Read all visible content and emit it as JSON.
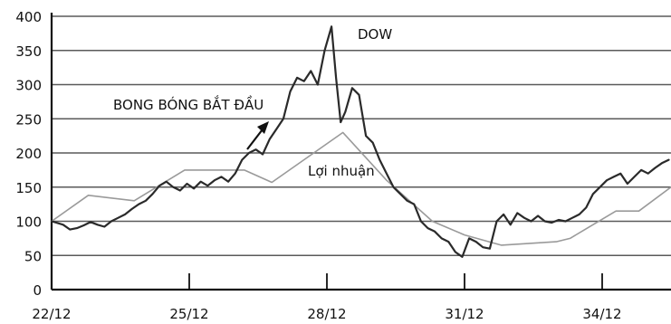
{
  "chart_data": {
    "type": "line",
    "title": "",
    "xlabel": "",
    "ylabel": "",
    "ylim": [
      0,
      400
    ],
    "xlim": [
      22,
      35.5
    ],
    "grid": true,
    "x_ticks": [
      22,
      25,
      28,
      31,
      34
    ],
    "x_tick_labels": [
      "22/12",
      "25/12",
      "28/12",
      "31/12",
      "34/12"
    ],
    "y_ticks": [
      0,
      50,
      100,
      150,
      200,
      250,
      300,
      350,
      400
    ],
    "y_tick_labels": [
      "0",
      "50",
      "100",
      "150",
      "200",
      "250",
      "300",
      "350",
      "400"
    ],
    "series": [
      {
        "name": "DOW",
        "x": [
          22.0,
          22.1,
          22.25,
          22.4,
          22.55,
          22.7,
          22.85,
          23.0,
          23.15,
          23.3,
          23.45,
          23.6,
          23.75,
          23.9,
          24.05,
          24.2,
          24.35,
          24.5,
          24.65,
          24.8,
          24.95,
          25.1,
          25.25,
          25.4,
          25.55,
          25.7,
          25.85,
          26.0,
          26.15,
          26.3,
          26.45,
          26.6,
          26.75,
          26.9,
          27.05,
          27.2,
          27.35,
          27.5,
          27.65,
          27.8,
          27.95,
          28.1,
          28.2,
          28.3,
          28.4,
          28.55,
          28.7,
          28.85,
          29.0,
          29.15,
          29.3,
          29.45,
          29.6,
          29.75,
          29.9,
          30.05,
          30.2,
          30.35,
          30.5,
          30.65,
          30.8,
          30.95,
          31.1,
          31.25,
          31.4,
          31.55,
          31.7,
          31.85,
          32.0,
          32.15,
          32.3,
          32.45,
          32.6,
          32.75,
          32.9,
          33.05,
          33.2,
          33.35,
          33.5,
          33.65,
          33.8,
          33.95,
          34.1,
          34.25,
          34.4,
          34.55,
          34.7,
          34.85,
          35.0,
          35.15,
          35.3,
          35.45
        ],
        "values": [
          100,
          98,
          95,
          88,
          90,
          94,
          99,
          95,
          92,
          100,
          105,
          110,
          118,
          125,
          130,
          140,
          152,
          158,
          150,
          145,
          155,
          148,
          158,
          152,
          160,
          165,
          158,
          170,
          190,
          200,
          205,
          198,
          220,
          235,
          250,
          290,
          310,
          305,
          320,
          300,
          350,
          385,
          310,
          245,
          260,
          295,
          285,
          225,
          215,
          190,
          170,
          150,
          140,
          130,
          125,
          100,
          90,
          85,
          75,
          70,
          55,
          48,
          75,
          70,
          62,
          60,
          100,
          110,
          95,
          112,
          105,
          100,
          108,
          100,
          98,
          102,
          100,
          105,
          110,
          120,
          140,
          150,
          160,
          165,
          170,
          155,
          165,
          175,
          170,
          178,
          185,
          190
        ]
      },
      {
        "name": "Lợi nhuận",
        "x": [
          22.0,
          22.8,
          23.8,
          24.9,
          26.2,
          26.8,
          28.35,
          29.3,
          30.3,
          31.0,
          31.8,
          33.0,
          33.3,
          34.3,
          34.8,
          35.5
        ],
        "values": [
          100,
          138,
          130,
          175,
          175,
          157,
          230,
          160,
          100,
          80,
          65,
          70,
          75,
          115,
          115,
          150
        ]
      }
    ],
    "annotations": [
      {
        "text": "DOW"
      },
      {
        "text": "BONG BÓNG BẮT ĐẦU"
      },
      {
        "text": "Lợi nhuận"
      }
    ],
    "colors": {
      "dow": "#2a2a2a",
      "profit": "#9a9a9a",
      "grid": "#5a5a5a",
      "axis": "#111111"
    }
  }
}
